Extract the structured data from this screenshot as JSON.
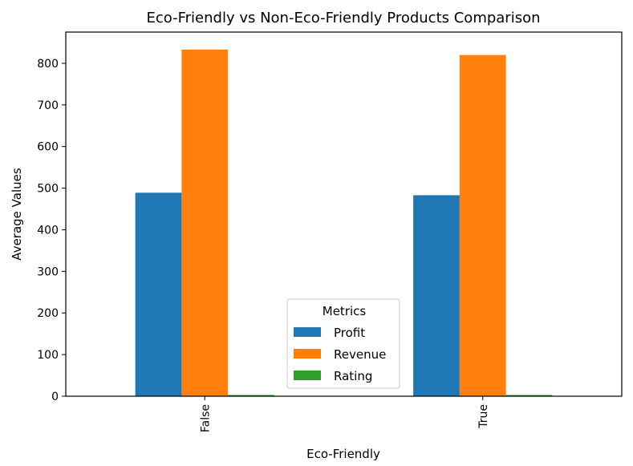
{
  "chart_data": {
    "type": "bar",
    "title": "Eco-Friendly vs Non-Eco-Friendly Products Comparison",
    "xlabel": "Eco-Friendly",
    "ylabel": "Average Values",
    "categories": [
      "False",
      "True"
    ],
    "series": [
      {
        "name": "Profit",
        "color": "#1f77b4",
        "values": [
          489,
          483
        ]
      },
      {
        "name": "Revenue",
        "color": "#ff7f0e",
        "values": [
          833,
          820
        ]
      },
      {
        "name": "Rating",
        "color": "#2ca02c",
        "values": [
          3.0,
          3.0
        ]
      }
    ],
    "ylim": [
      0,
      875
    ],
    "yticks": [
      0,
      100,
      200,
      300,
      400,
      500,
      600,
      700,
      800
    ],
    "grid": false,
    "legend": {
      "title": "Metrics",
      "placement": "lower-center"
    }
  }
}
